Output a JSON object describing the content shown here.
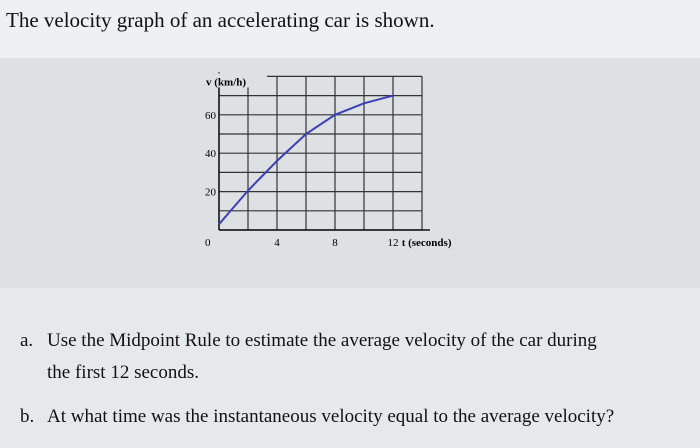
{
  "title": "The velocity graph of an accelerating car is shown.",
  "chart_data": {
    "type": "line",
    "ylabel": "v (km/h)",
    "xlabel": "t (seconds)",
    "xticks": [
      0,
      4,
      8,
      12
    ],
    "yticks": [
      20,
      40,
      60
    ],
    "xlim": [
      0,
      14
    ],
    "ylim": [
      0,
      80
    ],
    "grid": true,
    "x": [
      0,
      2,
      4,
      6,
      8,
      10,
      12
    ],
    "y": [
      3,
      20.5,
      36,
      50,
      60,
      66,
      70
    ],
    "line_color": "#3b3fb8"
  },
  "questions": [
    {
      "label": "a.",
      "text": "Use the Midpoint Rule to estimate the average velocity of the car during",
      "text2": "the first 12 seconds."
    },
    {
      "label": "b.",
      "text": "At what time was the instantaneous velocity equal to the average velocity?"
    }
  ]
}
